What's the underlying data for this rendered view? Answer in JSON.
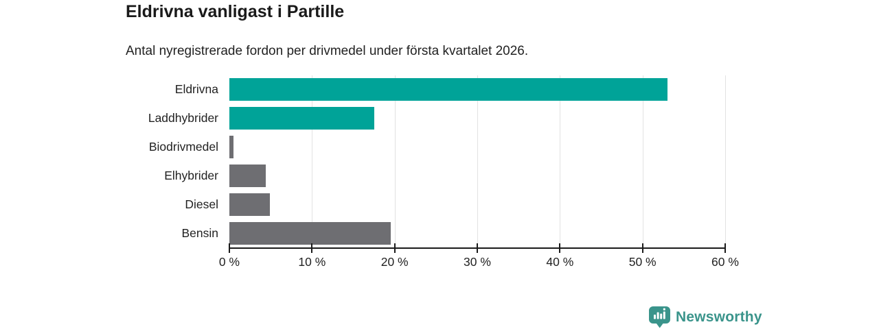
{
  "chart": {
    "title": "Eldrivna vanligast i Partille",
    "subtitle": "Antal nyregistrerade fordon per drivmedel under första kvartalet 2026."
  },
  "chart_data": {
    "type": "bar",
    "orientation": "horizontal",
    "title": "Eldrivna vanligast i Partille",
    "subtitle": "Antal nyregistrerade fordon per drivmedel under första kvartalet 2026.",
    "categories": [
      "Eldrivna",
      "Laddhybrider",
      "Biodrivmedel",
      "Elhybrider",
      "Diesel",
      "Bensin"
    ],
    "values": [
      53,
      17.5,
      0.5,
      4.4,
      4.9,
      19.5
    ],
    "unit": "%",
    "bar_colors": [
      "#00a398",
      "#00a398",
      "#6e6e72",
      "#6e6e72",
      "#6e6e72",
      "#6e6e72"
    ],
    "highlight_color": "#00a398",
    "default_color": "#6e6e72",
    "x_axis": {
      "range": [
        0,
        60
      ],
      "ticks": [
        0,
        10,
        20,
        30,
        40,
        50,
        60
      ],
      "tick_labels": [
        "0 %",
        "10 %",
        "20 %",
        "30 %",
        "40 %",
        "50 %",
        "60 %"
      ]
    },
    "grid": "vertical",
    "gridline_color": "#e2e2e2",
    "axis_color": "#1a1a1a",
    "legend": "none"
  },
  "brand": {
    "name": "Newsworthy",
    "color": "#3a948b"
  }
}
